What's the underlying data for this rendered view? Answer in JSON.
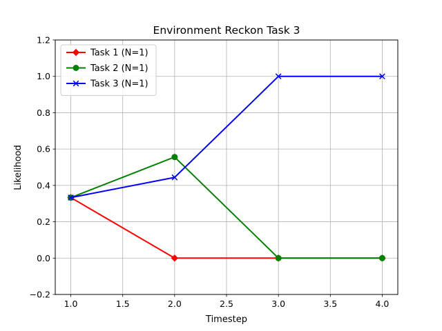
{
  "chart_data": {
    "type": "line",
    "title": "Environment Reckon Task 3",
    "xlabel": "Timestep",
    "ylabel": "Likelihood",
    "x": [
      1.0,
      2.0,
      3.0,
      4.0
    ],
    "xlim": [
      0.85,
      4.15
    ],
    "ylim": [
      -0.2,
      1.2
    ],
    "xticks": [
      1.0,
      1.5,
      2.0,
      2.5,
      3.0,
      3.5,
      4.0
    ],
    "xtick_labels": [
      "1.0",
      "1.5",
      "2.0",
      "2.5",
      "3.0",
      "3.5",
      "4.0"
    ],
    "yticks": [
      -0.2,
      0.0,
      0.2,
      0.4,
      0.6,
      0.8,
      1.0,
      1.2
    ],
    "ytick_labels": [
      "−0.2",
      "0.0",
      "0.2",
      "0.4",
      "0.6",
      "0.8",
      "1.0",
      "1.2"
    ],
    "grid": true,
    "legend_position": "upper-left",
    "series": [
      {
        "name": "Task 1 (N=1)",
        "color": "#ff0000",
        "marker": "diamond",
        "values": [
          0.333,
          0.0,
          0.0,
          0.0
        ]
      },
      {
        "name": "Task 2 (N=1)",
        "color": "#008000",
        "marker": "circle",
        "values": [
          0.333,
          0.556,
          0.0,
          0.0
        ]
      },
      {
        "name": "Task 3 (N=1)",
        "color": "#0000ff",
        "marker": "x",
        "values": [
          0.333,
          0.444,
          1.0,
          1.0
        ]
      }
    ]
  }
}
